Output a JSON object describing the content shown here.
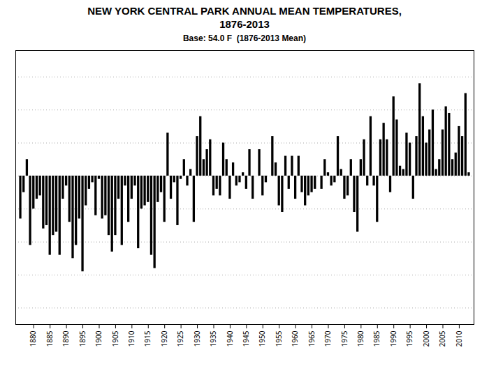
{
  "chart_data": {
    "type": "bar",
    "title": "NEW YORK CENTRAL PARK ANNUAL MEAN TEMPERATURES,\n1876-2013",
    "subtitle": "Base: 54.0 F  (1876-2013 Mean)",
    "x": [
      1876,
      1877,
      1878,
      1879,
      1880,
      1881,
      1882,
      1883,
      1884,
      1885,
      1886,
      1887,
      1888,
      1889,
      1890,
      1891,
      1892,
      1893,
      1894,
      1895,
      1896,
      1897,
      1898,
      1899,
      1900,
      1901,
      1902,
      1903,
      1904,
      1905,
      1906,
      1907,
      1908,
      1909,
      1910,
      1911,
      1912,
      1913,
      1914,
      1915,
      1916,
      1917,
      1918,
      1919,
      1920,
      1921,
      1922,
      1923,
      1924,
      1925,
      1926,
      1927,
      1928,
      1929,
      1930,
      1931,
      1932,
      1933,
      1934,
      1935,
      1936,
      1937,
      1938,
      1939,
      1940,
      1941,
      1942,
      1943,
      1944,
      1945,
      1946,
      1947,
      1948,
      1949,
      1950,
      1951,
      1952,
      1953,
      1954,
      1955,
      1956,
      1957,
      1958,
      1959,
      1960,
      1961,
      1962,
      1963,
      1964,
      1965,
      1966,
      1967,
      1968,
      1969,
      1970,
      1971,
      1972,
      1973,
      1974,
      1975,
      1976,
      1977,
      1978,
      1979,
      1980,
      1981,
      1982,
      1983,
      1984,
      1985,
      1986,
      1987,
      1988,
      1989,
      1990,
      1991,
      1992,
      1993,
      1994,
      1995,
      1996,
      1997,
      1998,
      1999,
      2000,
      2001,
      2002,
      2003,
      2004,
      2005,
      2006,
      2007,
      2008,
      2009,
      2010,
      2011,
      2012,
      2013
    ],
    "values": [
      -1.3,
      -0.5,
      0.5,
      -2.1,
      -1.0,
      -0.7,
      -0.6,
      -1.6,
      -1.5,
      -2.4,
      -1.8,
      -1.7,
      -2.4,
      -0.7,
      -0.3,
      -1.4,
      -2.5,
      -2.1,
      -1.3,
      -2.9,
      -0.9,
      -0.4,
      -0.2,
      -1.2,
      -0.1,
      -1.3,
      -1.2,
      -1.8,
      -2.3,
      -1.8,
      -0.7,
      -2.1,
      -0.3,
      -1.4,
      -0.7,
      -0.3,
      -2.2,
      -1.0,
      -0.9,
      -0.8,
      -2.4,
      -2.8,
      -0.8,
      -0.5,
      -1.4,
      1.3,
      -0.7,
      -0.2,
      -1.5,
      -0.1,
      0.5,
      -0.3,
      0.2,
      -1.4,
      1.2,
      1.8,
      0.5,
      0.8,
      1.1,
      -0.6,
      -0.4,
      -0.6,
      1.0,
      0.5,
      -0.7,
      0.4,
      -0.3,
      -0.2,
      0.1,
      -0.4,
      0.8,
      -0.7,
      0.0,
      0.8,
      -0.6,
      -0.2,
      0.0,
      1.2,
      0.4,
      -0.9,
      -1.1,
      0.6,
      -0.4,
      0.6,
      -0.7,
      0.6,
      -0.5,
      -0.9,
      -0.6,
      -0.5,
      -0.4,
      0.0,
      -0.4,
      0.5,
      0.1,
      -0.3,
      -0.2,
      1.2,
      0.2,
      -0.7,
      -0.6,
      0.5,
      -1.1,
      -1.7,
      0.5,
      1.1,
      -0.3,
      1.8,
      -0.3,
      -1.4,
      1.1,
      1.6,
      1.1,
      -0.5,
      2.4,
      1.7,
      0.3,
      0.2,
      1.3,
      1.0,
      -0.7,
      1.2,
      2.8,
      1.8,
      1.0,
      1.4,
      2.0,
      0.2,
      0.5,
      1.4,
      2.1,
      1.9,
      0.5,
      0.7,
      1.5,
      1.2,
      2.5,
      0.1
    ],
    "xlim": [
      1874.5,
      2014.5
    ],
    "xticks": [
      1880,
      1885,
      1890,
      1895,
      1900,
      1905,
      1910,
      1915,
      1920,
      1925,
      1930,
      1935,
      1940,
      1945,
      1950,
      1955,
      1960,
      1965,
      1970,
      1975,
      1980,
      1985,
      1990,
      1995,
      2000,
      2005,
      2010
    ],
    "ylim": [
      -4.5,
      3.8
    ],
    "yticks": [
      -4.0,
      -3.0,
      -2.0,
      -1.0,
      0.0,
      1.0,
      2.0,
      3.0
    ],
    "grid": true,
    "tick_labels": "x"
  }
}
